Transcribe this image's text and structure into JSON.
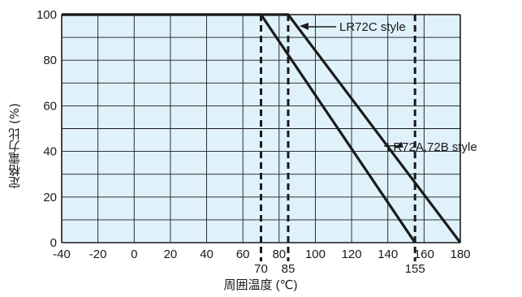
{
  "chart_data": {
    "type": "line",
    "xlabel": "周囲温度 (℃)",
    "ylabel": "定格電力比 (%)",
    "xlim": [
      -40,
      180
    ],
    "ylim": [
      0,
      100
    ],
    "x_ticks": [
      "-40",
      "-20",
      "0",
      "20",
      "40",
      "60",
      "80",
      "100",
      "120",
      "140",
      "160",
      "180"
    ],
    "y_ticks": [
      "0",
      "20",
      "40",
      "60",
      "80",
      "100"
    ],
    "extra_x_labels": [
      "70",
      "85",
      "155"
    ],
    "grid": true,
    "colors": {
      "plot_bg": "#dff1fb",
      "grid": "#1a1a1a",
      "line": "#1a1a1a"
    },
    "series": [
      {
        "name": "LR72C style",
        "x": [
          -40,
          70,
          155
        ],
        "y": [
          100,
          100,
          0
        ]
      },
      {
        "name": "LR72A,72B style",
        "x": [
          -40,
          85,
          180
        ],
        "y": [
          100,
          100,
          0
        ]
      }
    ],
    "reference_lines": [
      {
        "x": 70,
        "style": "dashed"
      },
      {
        "x": 85,
        "style": "dashed"
      },
      {
        "x": 155,
        "style": "dashed"
      }
    ],
    "annotations": [
      {
        "text": "LR72C style",
        "points_to": [
          85,
          100
        ]
      },
      {
        "text": "LR72A,72B style",
        "points_to": [
          140,
          40
        ]
      }
    ]
  }
}
